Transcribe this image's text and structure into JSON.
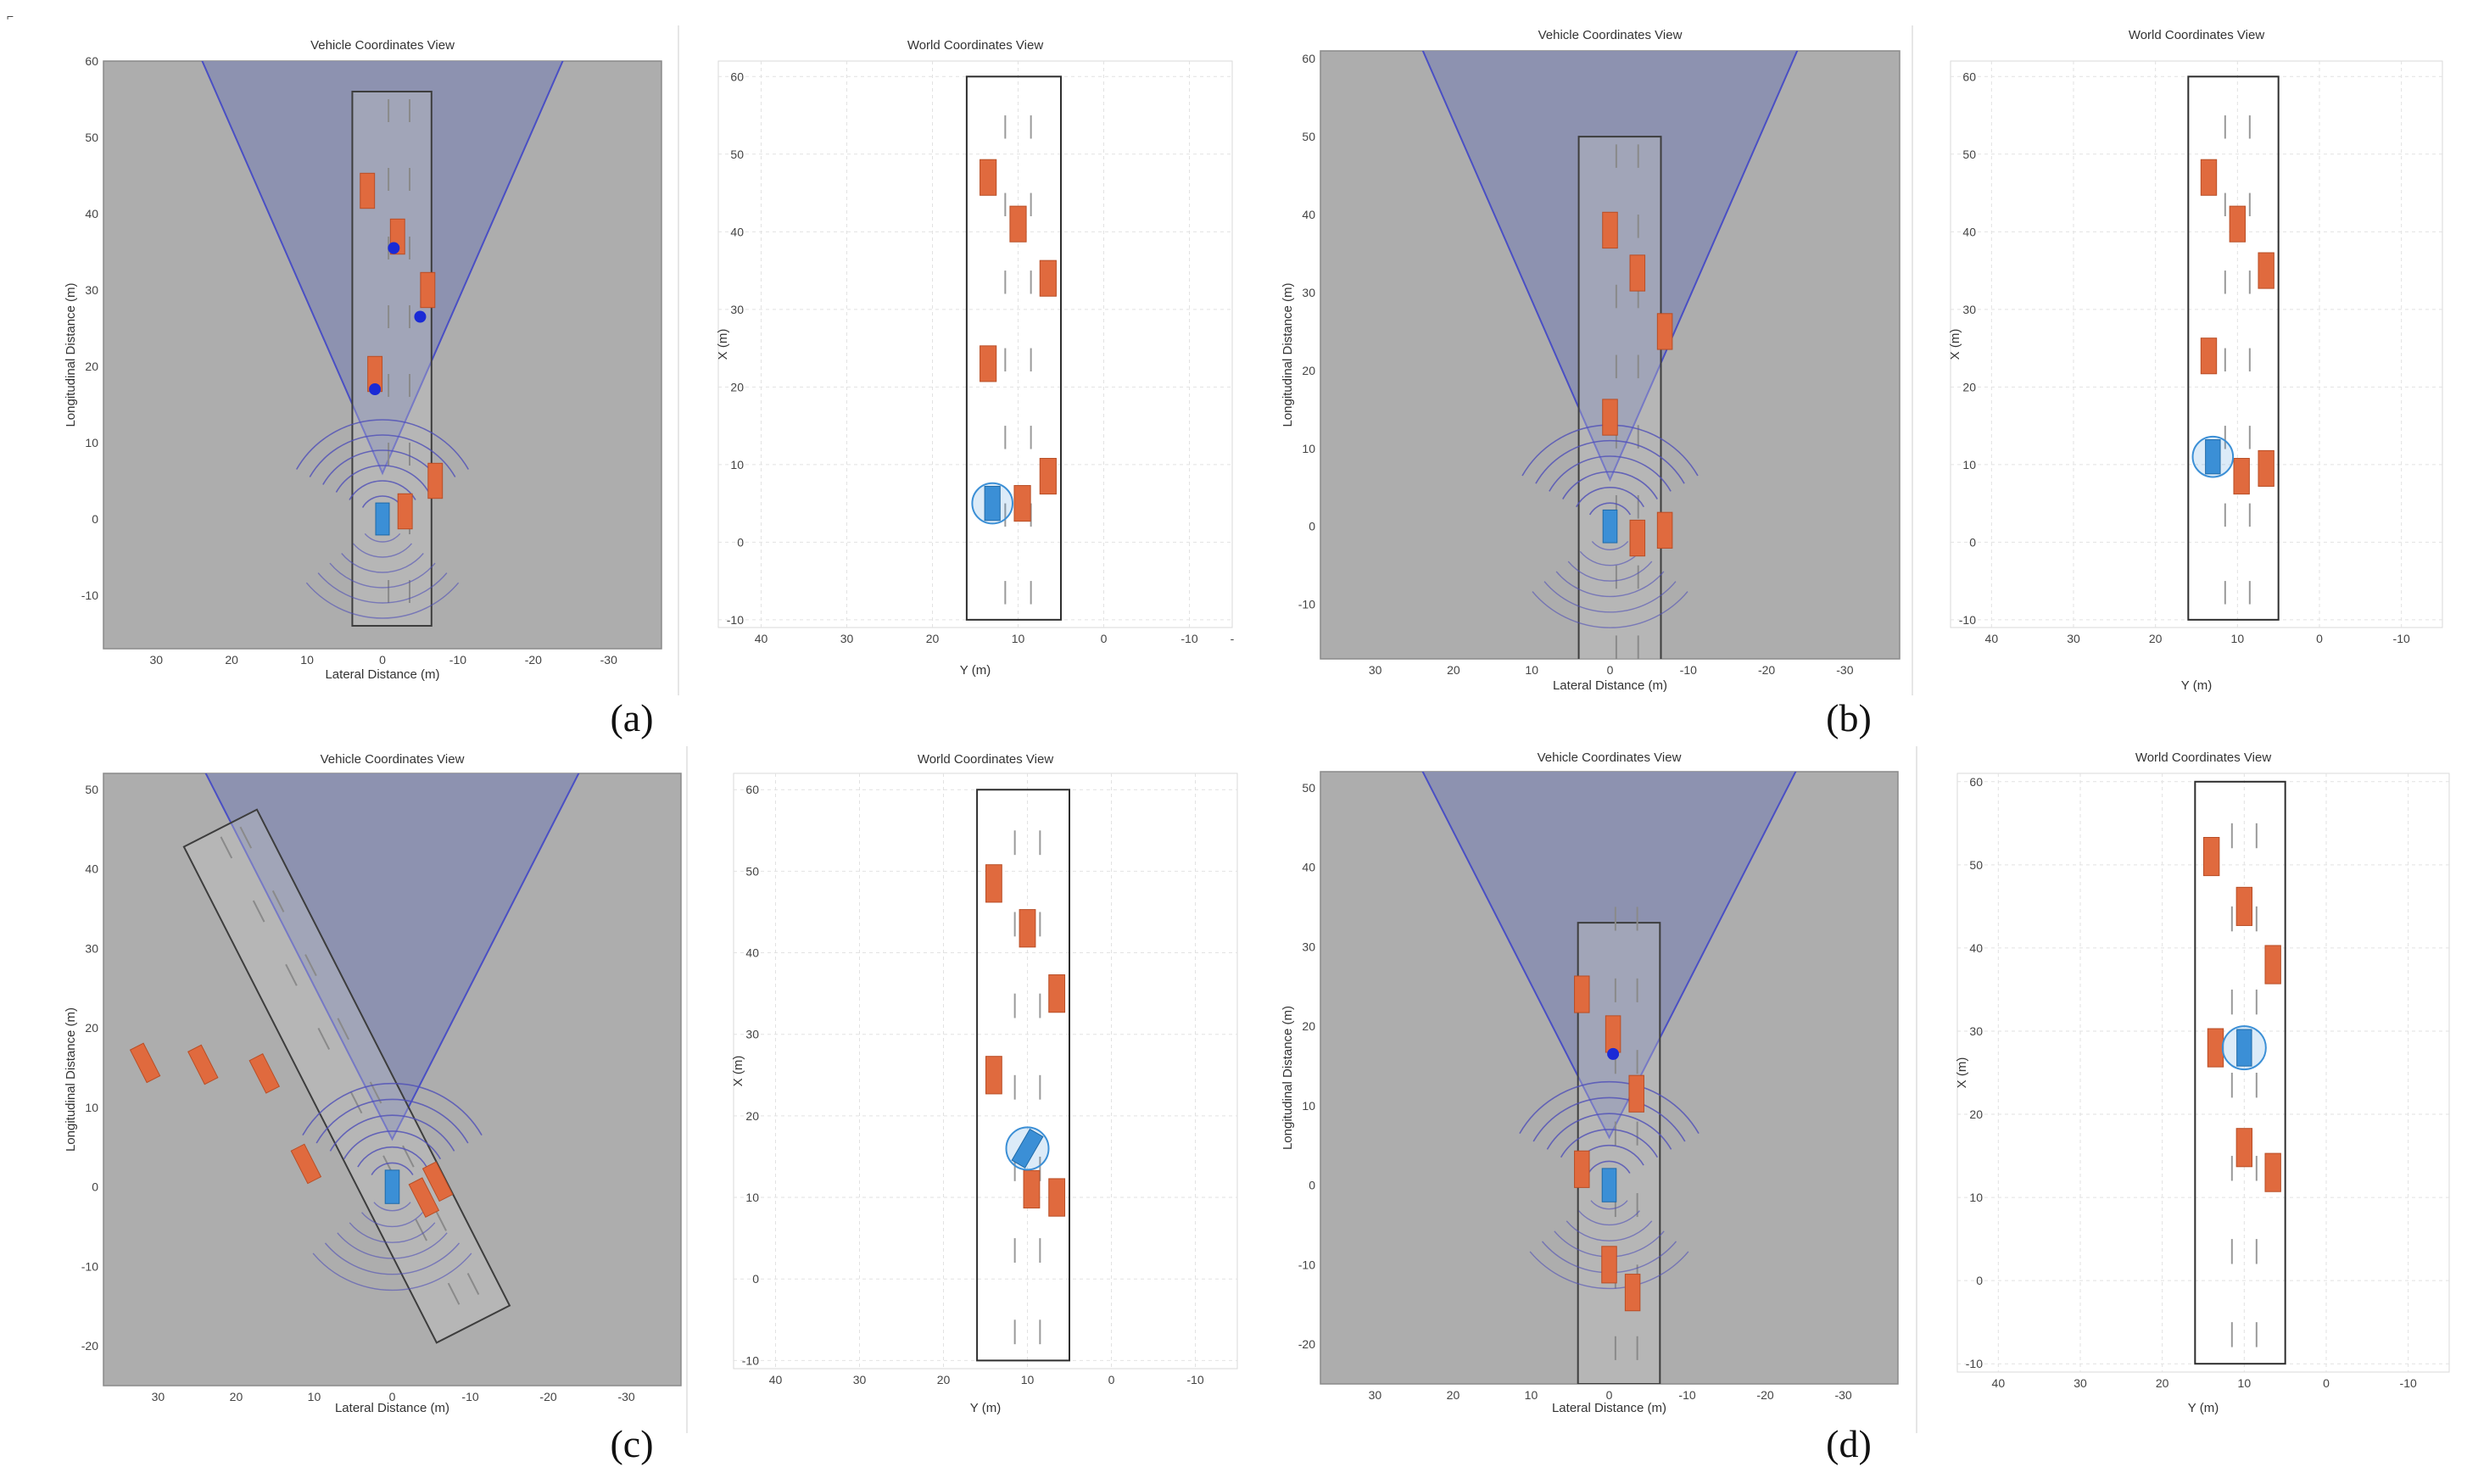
{
  "corner_mark": "⌐",
  "vehicle_view": {
    "title": "Vehicle Coordinates View",
    "xlabel": "Lateral Distance (m)",
    "ylabel": "Longitudinal Distance (m)"
  },
  "world_view": {
    "title": "World Coordinates View",
    "xlabel": "Y (m)",
    "ylabel": "X (m)"
  },
  "colors": {
    "vehicle_bg": "#adadad",
    "coverage": "#8a8fb0",
    "coverage_edge": "#4a4fc4",
    "target_vehicle": "#e06a3e",
    "ego_vehicle": "#3b8fd6",
    "detection": "#1a2ad6",
    "radar_arc": "#4f4fb8"
  },
  "icons": {
    "target": "orange-car-icon",
    "ego": "blue-ego-car-icon",
    "detection": "blue-detection-dot-icon"
  },
  "panels": [
    {
      "caption": "(a)",
      "vehicle": {
        "xticks": [
          "30",
          "20",
          "10",
          "0",
          "-10",
          "-20",
          "-30"
        ],
        "yticks": [
          "60",
          "50",
          "40",
          "30",
          "20",
          "10",
          "0",
          "-10"
        ],
        "ymax": 60,
        "ymin": -17,
        "road_rotation": 0,
        "road_y": [
          -14,
          56
        ],
        "targets": [
          {
            "x": 2,
            "y": 43
          },
          {
            "x": -2,
            "y": 37
          },
          {
            "x": -6,
            "y": 30
          },
          {
            "x": 1,
            "y": 19
          },
          {
            "x": -7,
            "y": 5
          },
          {
            "x": -3,
            "y": 1
          }
        ],
        "detections": [
          {
            "x": -1.5,
            "y": 35.5
          },
          {
            "x": -5,
            "y": 26.5
          },
          {
            "x": 1,
            "y": 17
          }
        ]
      },
      "world": {
        "xticks": [
          "40",
          "30",
          "20",
          "10",
          "0",
          "-10",
          "-"
        ],
        "yticks": [
          "60",
          "50",
          "40",
          "30",
          "20",
          "10",
          "0",
          "-10"
        ],
        "ymax": 62,
        "ymin": -11,
        "targets": [
          {
            "x": 47,
            "y": 13.5
          },
          {
            "x": 41,
            "y": 10
          },
          {
            "x": 34,
            "y": 6.5
          },
          {
            "x": 23,
            "y": 13.5
          },
          {
            "x": 8.5,
            "y": 6.5
          },
          {
            "x": 5,
            "y": 9.5
          }
        ],
        "ego": {
          "x": 5,
          "y": 13
        }
      }
    },
    {
      "caption": "(b)",
      "vehicle": {
        "xticks": [
          "30",
          "20",
          "10",
          "0",
          "-10",
          "-20",
          "-30"
        ],
        "yticks": [
          "60",
          "50",
          "40",
          "30",
          "20",
          "10",
          "0",
          "-10"
        ],
        "ymax": 61,
        "ymin": -17,
        "road_rotation": 0,
        "road_y": [
          -20,
          50
        ],
        "targets": [
          {
            "x": 0,
            "y": 38
          },
          {
            "x": -3.5,
            "y": 32.5
          },
          {
            "x": -7,
            "y": 25
          },
          {
            "x": 0,
            "y": 14
          },
          {
            "x": -3.5,
            "y": -1.5
          },
          {
            "x": -7,
            "y": -0.5
          }
        ],
        "detections": []
      },
      "world": {
        "xticks": [
          "40",
          "30",
          "20",
          "10",
          "0",
          "-10"
        ],
        "yticks": [
          "60",
          "50",
          "40",
          "30",
          "20",
          "10",
          "0",
          "-10"
        ],
        "ymax": 62,
        "ymin": -11,
        "targets": [
          {
            "x": 47,
            "y": 13.5
          },
          {
            "x": 41,
            "y": 10
          },
          {
            "x": 35,
            "y": 6.5
          },
          {
            "x": 24,
            "y": 13.5
          },
          {
            "x": 8.5,
            "y": 9.5
          },
          {
            "x": 9.5,
            "y": 6.5
          }
        ],
        "ego": {
          "x": 11,
          "y": 13
        }
      }
    },
    {
      "caption": "(c)",
      "vehicle": {
        "xticks": [
          "30",
          "20",
          "10",
          "0",
          "-10",
          "-20",
          "-30"
        ],
        "yticks": [
          "50",
          "40",
          "30",
          "20",
          "10",
          "0",
          "-10",
          "-20"
        ],
        "ymax": 52,
        "ymin": -25,
        "road_rotation": -27,
        "road_y": [
          -20,
          50
        ],
        "targets": [
          {
            "x": 21,
            "y": 28
          },
          {
            "x": 14.5,
            "y": 24.5
          },
          {
            "x": 8,
            "y": 20
          },
          {
            "x": 8.5,
            "y": 7.5
          },
          {
            "x": -3,
            "y": -3
          },
          {
            "x": -5.5,
            "y": -2
          }
        ],
        "detections": []
      },
      "world": {
        "xticks": [
          "40",
          "30",
          "20",
          "10",
          "0",
          "-10"
        ],
        "yticks": [
          "60",
          "50",
          "40",
          "30",
          "20",
          "10",
          "0",
          "-10"
        ],
        "ymax": 62,
        "ymin": -11,
        "targets": [
          {
            "x": 48.5,
            "y": 14
          },
          {
            "x": 43,
            "y": 10
          },
          {
            "x": 35,
            "y": 6.5
          },
          {
            "x": 25,
            "y": 14
          },
          {
            "x": 11,
            "y": 9.5
          },
          {
            "x": 10,
            "y": 6.5
          }
        ],
        "ego": {
          "x": 16,
          "y": 10
        }
      }
    },
    {
      "caption": "(d)",
      "vehicle": {
        "xticks": [
          "30",
          "20",
          "10",
          "0",
          "-10",
          "-20",
          "-30"
        ],
        "yticks": [
          "50",
          "40",
          "30",
          "20",
          "10",
          "0",
          "-10",
          "-20"
        ],
        "ymax": 52,
        "ymin": -25,
        "road_rotation": 0,
        "road_y": [
          -25,
          33
        ],
        "targets": [
          {
            "x": 3.5,
            "y": 24
          },
          {
            "x": -0.5,
            "y": 19
          },
          {
            "x": -3.5,
            "y": 11.5
          },
          {
            "x": 3.5,
            "y": 2
          },
          {
            "x": 0,
            "y": -10
          },
          {
            "x": -3,
            "y": -13.5
          }
        ],
        "detections": [
          {
            "x": -0.5,
            "y": 16.5
          }
        ]
      },
      "world": {
        "xticks": [
          "40",
          "30",
          "20",
          "10",
          "0",
          "-10"
        ],
        "yticks": [
          "60",
          "50",
          "40",
          "30",
          "20",
          "10",
          "0",
          "-10"
        ],
        "ymax": 61,
        "ymin": -11,
        "targets": [
          {
            "x": 51,
            "y": 14
          },
          {
            "x": 45,
            "y": 10
          },
          {
            "x": 38,
            "y": 6.5
          },
          {
            "x": 28,
            "y": 13.5
          },
          {
            "x": 16,
            "y": 10
          },
          {
            "x": 13,
            "y": 6.5
          }
        ],
        "ego": {
          "x": 28,
          "y": 10
        }
      }
    }
  ]
}
